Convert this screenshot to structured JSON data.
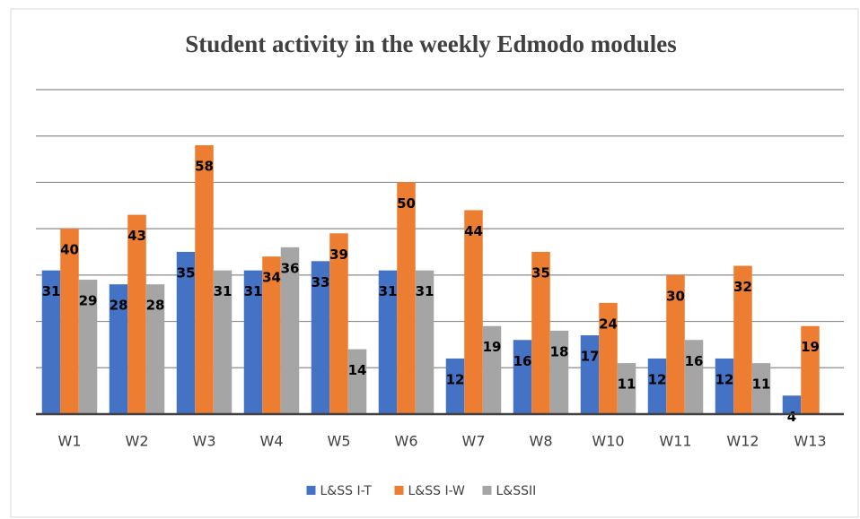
{
  "chart_data": {
    "type": "bar",
    "title": "Student activity in the weekly Edmodo modules",
    "categories": [
      "W1",
      "W2",
      "W3",
      "W4",
      "W5",
      "W6",
      "W7",
      "W8",
      "W10",
      "W11",
      "W12",
      "W13"
    ],
    "series": [
      {
        "name": "L&SS I-T",
        "color": "#4472c4",
        "values": [
          31,
          28,
          35,
          31,
          33,
          31,
          12,
          16,
          17,
          12,
          12,
          4
        ]
      },
      {
        "name": "L&SS I-W",
        "color": "#ed7d31",
        "values": [
          40,
          43,
          58,
          34,
          39,
          50,
          44,
          35,
          24,
          30,
          32,
          19
        ]
      },
      {
        "name": "L&SSII",
        "color": "#a5a5a5",
        "values": [
          29,
          28,
          31,
          36,
          14,
          31,
          19,
          18,
          11,
          16,
          11,
          null
        ]
      }
    ],
    "ylim": [
      0,
      70
    ],
    "yticks": [
      0,
      10,
      20,
      30,
      40,
      50,
      60,
      70
    ],
    "grid": true,
    "legend": "bottom"
  }
}
